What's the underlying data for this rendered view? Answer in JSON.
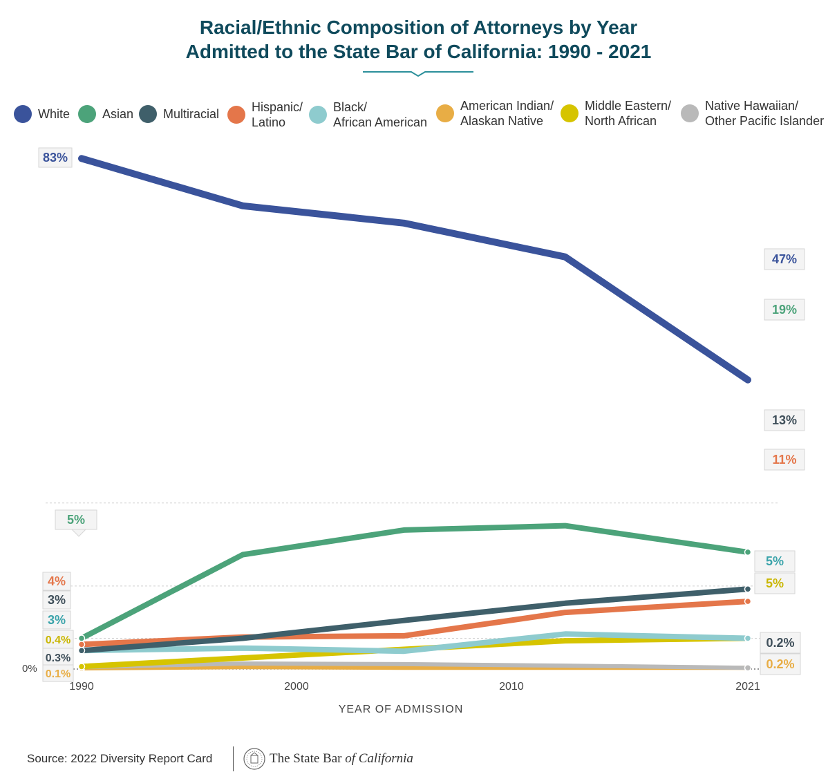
{
  "title": {
    "line1": "Racial/Ethnic Composition of Attorneys by Year",
    "line2": "Admitted to the State Bar of California:  1990 - 2021"
  },
  "legend": [
    {
      "key": "white",
      "lines": [
        "White"
      ],
      "color": "#3a539b"
    },
    {
      "key": "asian",
      "lines": [
        "Asian"
      ],
      "color": "#4ca37a"
    },
    {
      "key": "multiracial",
      "lines": [
        "Multiracial"
      ],
      "color": "#3f5f6a"
    },
    {
      "key": "hispanic",
      "lines": [
        "Hispanic/",
        "Latino"
      ],
      "color": "#e4764a"
    },
    {
      "key": "black",
      "lines": [
        "Black/",
        "African American"
      ],
      "color": "#8ecbce"
    },
    {
      "key": "amindian",
      "lines": [
        "American Indian/",
        "Alaskan Native"
      ],
      "color": "#e8ad45"
    },
    {
      "key": "mideast",
      "lines": [
        "Middle Eastern/",
        "North African"
      ],
      "color": "#d6c400"
    },
    {
      "key": "nhpi",
      "lines": [
        "Native Hawaiian/",
        "Other Pacific Islander"
      ],
      "color": "#b9b9b9"
    }
  ],
  "axis": {
    "x_title": "YEAR OF ADMISSION",
    "zero_label": "0%",
    "x_ticks": [
      1990,
      2000,
      2010,
      2021
    ]
  },
  "chart_data": {
    "type": "line",
    "title": "Racial/Ethnic Composition of Attorneys by Year Admitted to the State Bar of California: 1990 - 2021",
    "xlabel": "YEAR OF ADMISSION",
    "ylabel": "",
    "xlim": [
      1990,
      2021
    ],
    "ylim": [
      0,
      85
    ],
    "x": [
      1990,
      1997.5,
      2005,
      2012.5,
      2021
    ],
    "series": [
      {
        "key": "white",
        "name": "White",
        "color": "#3a539b",
        "values": [
          83,
          75.3,
          72.5,
          67,
          47
        ],
        "start_label": "83%",
        "end_label": "47%"
      },
      {
        "key": "asian",
        "name": "Asian",
        "color": "#4ca37a",
        "values": [
          5,
          18.6,
          22.6,
          23.3,
          19
        ],
        "start_label": "5%",
        "end_label": "19%"
      },
      {
        "key": "multiracial",
        "name": "Multiracial",
        "color": "#3f5f6a",
        "values": [
          3,
          5.0,
          7.9,
          10.7,
          13
        ],
        "start_label": "3%",
        "end_label": "13%"
      },
      {
        "key": "hispanic",
        "name": "Hispanic/Latino",
        "color": "#e4764a",
        "values": [
          4,
          5.2,
          5.4,
          9.2,
          11
        ],
        "start_label": "4%",
        "end_label": "11%"
      },
      {
        "key": "black",
        "name": "Black/African American",
        "color": "#8ecbce",
        "values": [
          3,
          3.4,
          2.9,
          5.7,
          5
        ],
        "start_label": "3%",
        "end_label": "5%"
      },
      {
        "key": "mideast",
        "name": "Middle Eastern/North African",
        "color": "#d6c400",
        "values": [
          0.4,
          1.8,
          3.2,
          4.6,
          5
        ],
        "start_label": "0.4%",
        "end_label": "5%"
      },
      {
        "key": "nhpi",
        "name": "Native Hawaiian/Other Pacific Islander",
        "color": "#b9b9b9",
        "values": [
          0.3,
          0.9,
          0.8,
          0.55,
          0.2
        ],
        "start_label": "0.3%",
        "end_label": "0.2%"
      },
      {
        "key": "amindian",
        "name": "American Indian/Alaskan Native",
        "color": "#e8ad45",
        "values": [
          0.1,
          0.3,
          0.2,
          0.2,
          0.2
        ],
        "start_label": "0.1%",
        "end_label": "0.2%"
      }
    ]
  },
  "footer": {
    "source": "Source:  2022 Diversity Report Card",
    "brand_prefix": "The State Bar ",
    "brand_italic": "of California"
  }
}
